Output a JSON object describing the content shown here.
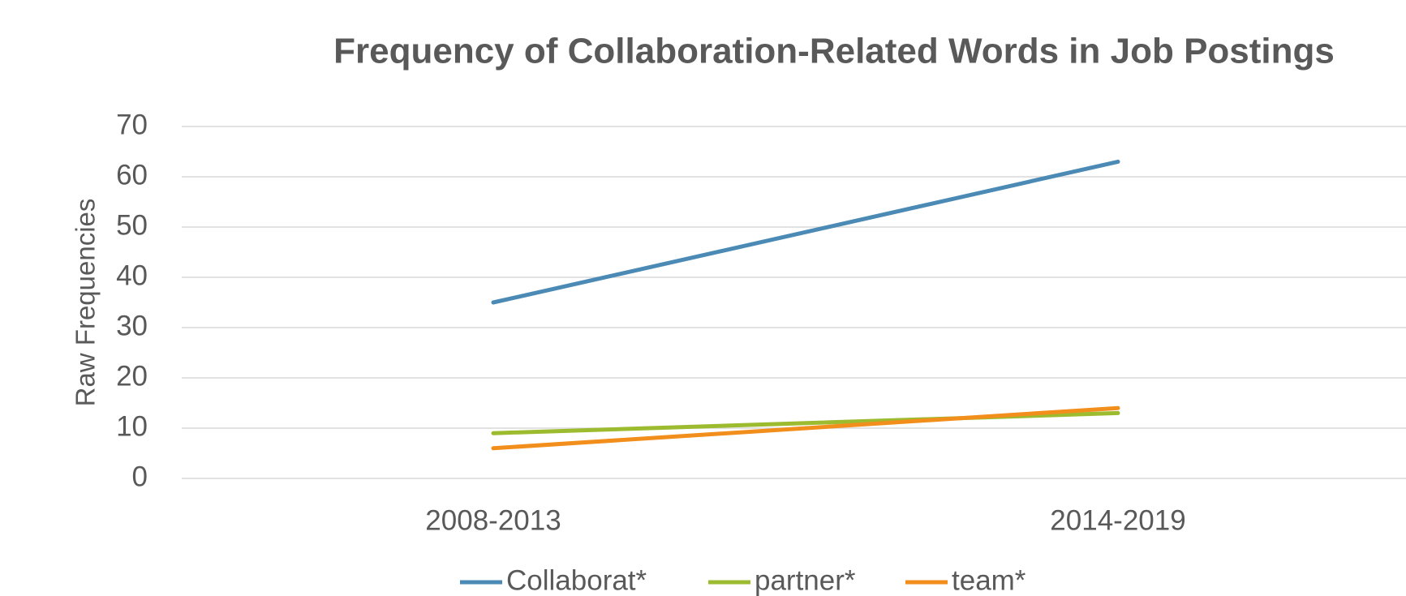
{
  "chart_data": {
    "type": "line",
    "title": "Frequency of Collaboration-Related Words in Job Postings",
    "y_label": "Raw Frequencies",
    "categories": [
      "2008-2013",
      "2014-2019"
    ],
    "series": [
      {
        "name": "Collaborat*",
        "color": "#4a8ab5",
        "values": [
          35,
          63
        ]
      },
      {
        "name": "partner*",
        "color": "#9dbb2f",
        "values": [
          9,
          13
        ]
      },
      {
        "name": "team*",
        "color": "#f28e1c",
        "values": [
          6,
          14
        ]
      }
    ],
    "ylim": [
      0,
      70
    ],
    "yticks": [
      0,
      10,
      20,
      30,
      40,
      50,
      60,
      70
    ],
    "grid": true,
    "legend": "bottom"
  }
}
